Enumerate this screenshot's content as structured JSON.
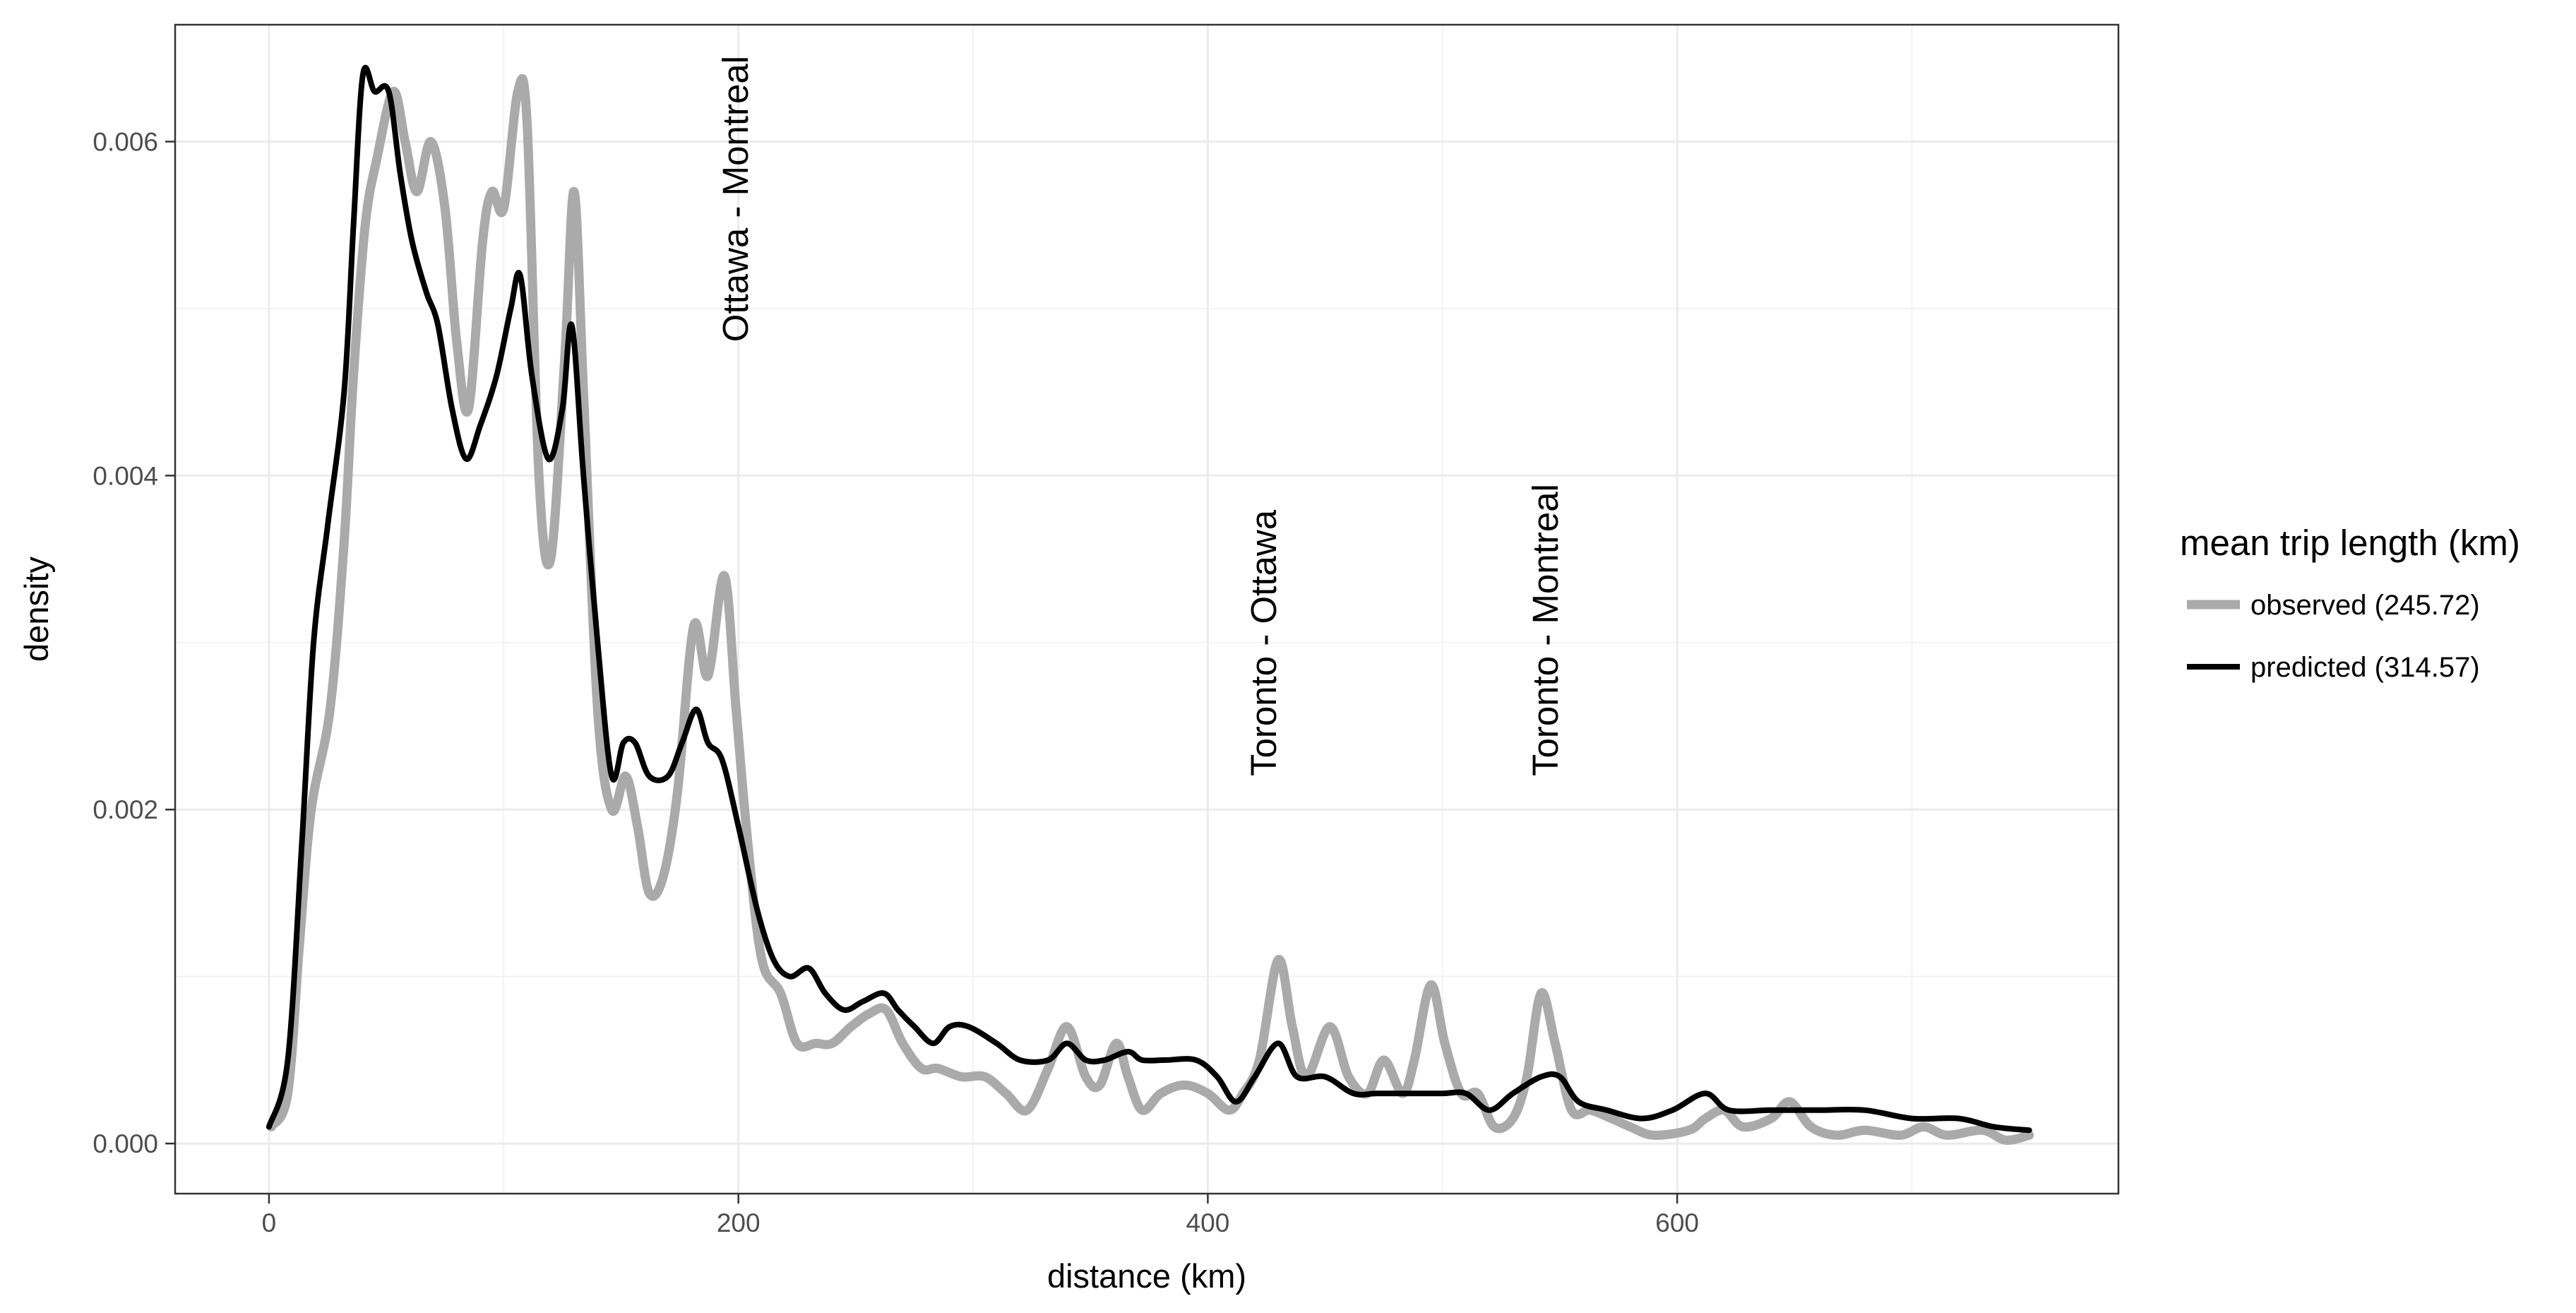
{
  "chart_data": {
    "type": "line",
    "xlabel": "distance (km)",
    "ylabel": "density",
    "xlim": [
      -40,
      788
    ],
    "ylim": [
      -0.0003,
      0.0067
    ],
    "x_ticks": [
      0,
      200,
      400,
      600
    ],
    "x_tick_labels": [
      "0",
      "200",
      "400",
      "600"
    ],
    "x_minor_ticks": [
      100,
      300,
      500,
      700
    ],
    "y_ticks": [
      0.0,
      0.002,
      0.004,
      0.006
    ],
    "y_tick_labels": [
      "0.000",
      "0.002",
      "0.004",
      "0.006"
    ],
    "y_minor_ticks": [
      0.001,
      0.003,
      0.005
    ],
    "grid": true,
    "theme": "bw",
    "legend": {
      "title": "mean trip length (km)",
      "placement": "right"
    },
    "annotations": [
      {
        "text": "Ottawa - Montreal",
        "x": 200,
        "y": 0.0048
      },
      {
        "text": "Toronto - Ottawa",
        "x": 425,
        "y": 0.0022
      },
      {
        "text": "Toronto - Montreal",
        "x": 545,
        "y": 0.0022
      }
    ],
    "series": [
      {
        "name": "observed (245.72)",
        "color": "#aaaaaa",
        "points": [
          [
            1,
            0.0001
          ],
          [
            8,
            0.0003
          ],
          [
            13,
            0.0012
          ],
          [
            18,
            0.002
          ],
          [
            26,
            0.0026
          ],
          [
            32,
            0.0036
          ],
          [
            36,
            0.0046
          ],
          [
            41,
            0.0055
          ],
          [
            46,
            0.0059
          ],
          [
            53,
            0.0063
          ],
          [
            58,
            0.006
          ],
          [
            63,
            0.0057
          ],
          [
            69,
            0.006
          ],
          [
            75,
            0.0056
          ],
          [
            80,
            0.0048
          ],
          [
            85,
            0.0044
          ],
          [
            91,
            0.0054
          ],
          [
            95,
            0.0057
          ],
          [
            100,
            0.0056
          ],
          [
            106,
            0.0063
          ],
          [
            110,
            0.0061
          ],
          [
            115,
            0.004
          ],
          [
            120,
            0.0035
          ],
          [
            126,
            0.0047
          ],
          [
            130,
            0.0057
          ],
          [
            134,
            0.0045
          ],
          [
            140,
            0.0026
          ],
          [
            146,
            0.002
          ],
          [
            152,
            0.0022
          ],
          [
            157,
            0.0019
          ],
          [
            162,
            0.0015
          ],
          [
            168,
            0.0016
          ],
          [
            174,
            0.0021
          ],
          [
            181,
            0.0031
          ],
          [
            187,
            0.0028
          ],
          [
            194,
            0.0034
          ],
          [
            199,
            0.0026
          ],
          [
            204,
            0.0018
          ],
          [
            210,
            0.0011
          ],
          [
            218,
            0.0009
          ],
          [
            225,
            0.0006
          ],
          [
            233,
            0.0006
          ],
          [
            240,
            0.0006
          ],
          [
            248,
            0.0007
          ],
          [
            256,
            0.00078
          ],
          [
            263,
            0.0008
          ],
          [
            270,
            0.0006
          ],
          [
            278,
            0.00045
          ],
          [
            285,
            0.00045
          ],
          [
            295,
            0.0004
          ],
          [
            305,
            0.0004
          ],
          [
            314,
            0.0003
          ],
          [
            323,
            0.0002
          ],
          [
            332,
            0.00045
          ],
          [
            340,
            0.0007
          ],
          [
            348,
            0.0004
          ],
          [
            354,
            0.00035
          ],
          [
            361,
            0.0006
          ],
          [
            366,
            0.0004
          ],
          [
            372,
            0.0002
          ],
          [
            380,
            0.0003
          ],
          [
            390,
            0.00035
          ],
          [
            400,
            0.0003
          ],
          [
            409,
            0.0002
          ],
          [
            415,
            0.0003
          ],
          [
            422,
            0.0005
          ],
          [
            430,
            0.0011
          ],
          [
            436,
            0.0007
          ],
          [
            442,
            0.0004
          ],
          [
            452,
            0.0007
          ],
          [
            460,
            0.0004
          ],
          [
            468,
            0.0003
          ],
          [
            475,
            0.0005
          ],
          [
            483,
            0.0003
          ],
          [
            488,
            0.0005
          ],
          [
            495,
            0.00095
          ],
          [
            501,
            0.0006
          ],
          [
            508,
            0.0003
          ],
          [
            515,
            0.0003
          ],
          [
            522,
            0.0001
          ],
          [
            530,
            0.00015
          ],
          [
            536,
            0.0004
          ],
          [
            542,
            0.0009
          ],
          [
            548,
            0.0006
          ],
          [
            555,
            0.0002
          ],
          [
            563,
            0.0002
          ],
          [
            572,
            0.00015
          ],
          [
            580,
            0.0001
          ],
          [
            590,
            5e-05
          ],
          [
            605,
            8e-05
          ],
          [
            612,
            0.00015
          ],
          [
            620,
            0.0002
          ],
          [
            628,
            0.0001
          ],
          [
            640,
            0.00015
          ],
          [
            648,
            0.00025
          ],
          [
            657,
            0.0001
          ],
          [
            668,
            5e-05
          ],
          [
            680,
            8e-05
          ],
          [
            695,
            5e-05
          ],
          [
            705,
            0.0001
          ],
          [
            715,
            5e-05
          ],
          [
            730,
            8e-05
          ],
          [
            740,
            2e-05
          ],
          [
            750,
            5e-05
          ]
        ]
      },
      {
        "name": "predicted (314.57)",
        "color": "#000000",
        "points": [
          [
            0,
            0.0001
          ],
          [
            8,
            0.0005
          ],
          [
            14,
            0.0018
          ],
          [
            19,
            0.003
          ],
          [
            25,
            0.0037
          ],
          [
            32,
            0.0045
          ],
          [
            36,
            0.0055
          ],
          [
            40,
            0.0064
          ],
          [
            45,
            0.0063
          ],
          [
            51,
            0.0063
          ],
          [
            56,
            0.0058
          ],
          [
            61,
            0.0054
          ],
          [
            67,
            0.0051
          ],
          [
            72,
            0.0049
          ],
          [
            78,
            0.0044
          ],
          [
            84,
            0.0041
          ],
          [
            90,
            0.0043
          ],
          [
            97,
            0.0046
          ],
          [
            103,
            0.005
          ],
          [
            107,
            0.0052
          ],
          [
            112,
            0.0046
          ],
          [
            119,
            0.0041
          ],
          [
            125,
            0.0044
          ],
          [
            129,
            0.0049
          ],
          [
            134,
            0.004
          ],
          [
            140,
            0.003
          ],
          [
            146,
            0.0022
          ],
          [
            151,
            0.0024
          ],
          [
            156,
            0.0024
          ],
          [
            162,
            0.0022
          ],
          [
            170,
            0.0022
          ],
          [
            176,
            0.0024
          ],
          [
            182,
            0.0026
          ],
          [
            187,
            0.0024
          ],
          [
            193,
            0.0023
          ],
          [
            200,
            0.0019
          ],
          [
            208,
            0.0014
          ],
          [
            215,
            0.0011
          ],
          [
            222,
            0.001
          ],
          [
            230,
            0.00105
          ],
          [
            237,
            0.0009
          ],
          [
            245,
            0.0008
          ],
          [
            253,
            0.00085
          ],
          [
            262,
            0.0009
          ],
          [
            268,
            0.0008
          ],
          [
            275,
            0.0007
          ],
          [
            283,
            0.0006
          ],
          [
            290,
            0.0007
          ],
          [
            298,
            0.0007
          ],
          [
            310,
            0.0006
          ],
          [
            320,
            0.0005
          ],
          [
            332,
            0.0005
          ],
          [
            340,
            0.0006
          ],
          [
            348,
            0.0005
          ],
          [
            356,
            0.0005
          ],
          [
            366,
            0.00055
          ],
          [
            372,
            0.0005
          ],
          [
            382,
            0.0005
          ],
          [
            395,
            0.0005
          ],
          [
            404,
            0.0004
          ],
          [
            412,
            0.00025
          ],
          [
            420,
            0.0004
          ],
          [
            430,
            0.0006
          ],
          [
            438,
            0.0004
          ],
          [
            450,
            0.0004
          ],
          [
            462,
            0.0003
          ],
          [
            472,
            0.0003
          ],
          [
            485,
            0.0003
          ],
          [
            500,
            0.0003
          ],
          [
            510,
            0.0003
          ],
          [
            520,
            0.0002
          ],
          [
            530,
            0.0003
          ],
          [
            542,
            0.0004
          ],
          [
            550,
            0.0004
          ],
          [
            558,
            0.00025
          ],
          [
            570,
            0.0002
          ],
          [
            585,
            0.00015
          ],
          [
            598,
            0.0002
          ],
          [
            612,
            0.0003
          ],
          [
            622,
            0.0002
          ],
          [
            640,
            0.0002
          ],
          [
            660,
            0.0002
          ],
          [
            680,
            0.0002
          ],
          [
            700,
            0.00015
          ],
          [
            720,
            0.00015
          ],
          [
            735,
            0.0001
          ],
          [
            750,
            8e-05
          ]
        ]
      }
    ]
  }
}
